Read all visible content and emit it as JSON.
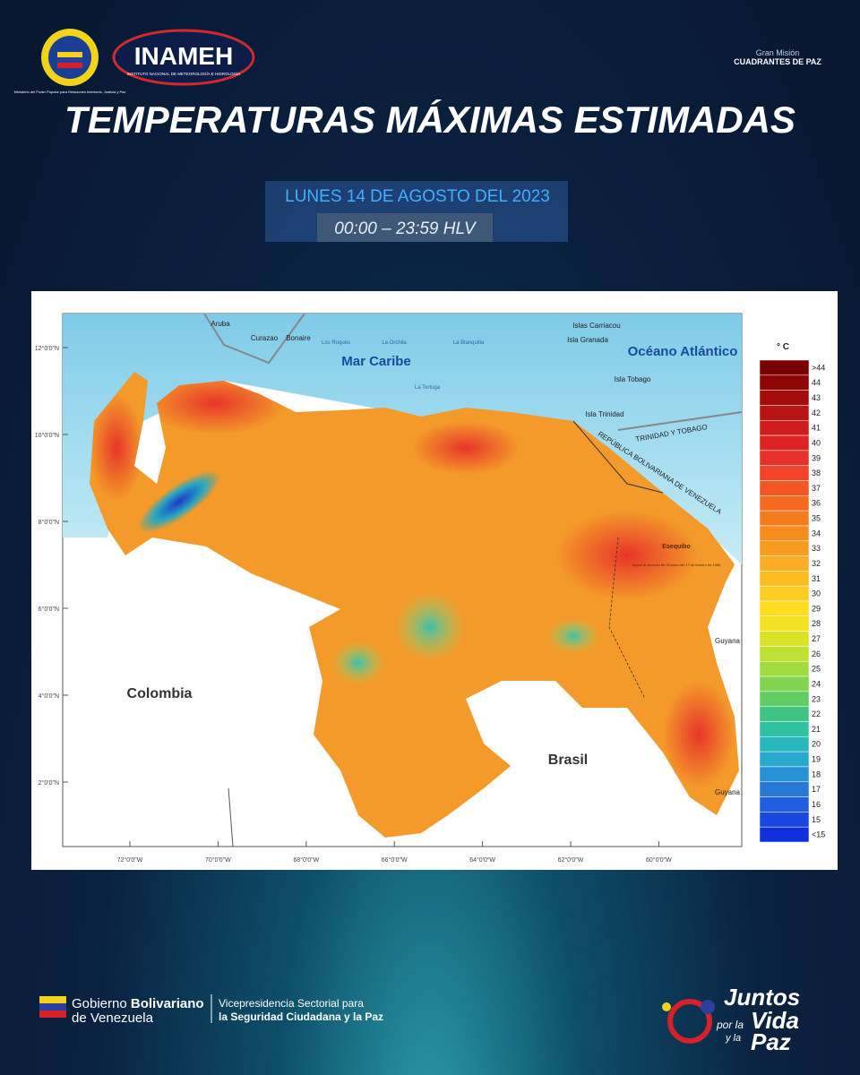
{
  "header": {
    "logo_ministry": "Ministerio del Poder Popular para Relaciones Interiores, Justicia y Paz",
    "logo_inameh": "INAMEH",
    "logo_inameh_subtitle": "INSTITUTO NACIONAL DE METEOROLOGÍA E HIDROLOGÍA",
    "mission_top": "Gran Misión",
    "mission_name": "CUADRANTES DE PAZ",
    "title": "TEMPERATURAS MÁXIMAS ESTIMADAS",
    "date": "LUNES 14 DE AGOSTO DEL 2023",
    "time": "00:00 – 23:59 HLV"
  },
  "map": {
    "labels": [
      "Aruba",
      "Curazao",
      "Bonaire",
      "Los Roques",
      "La Orchila",
      "La Blanquilla",
      "La Tortuga",
      "Islas Carriacou",
      "Isla Granada",
      "Isla Tobago",
      "Isla Trinidad",
      "Mar Caribe",
      "Océano Atlántico",
      "TRINIDAD Y TOBAGO",
      "REPÚBLICA BOLIVARIANA DE VENEZUELA",
      "Esequibo",
      "Sujeto al acuerdo de Ginebra del 17 de febrero de 1966",
      "Guyana",
      "Guyana",
      "Colombia",
      "Brasil"
    ],
    "lat_labels": [
      "12°0'0\"N",
      "10°0'0\"N",
      "8°0'0\"N",
      "6°0'0\"N",
      "4°0'0\"N",
      "2°0'0\"N"
    ],
    "lon_labels": [
      "72°0'0\"W",
      "70°0'0\"W",
      "68°0'0\"W",
      "66°0'0\"W",
      "64°0'0\"W",
      "62°0'0\"W",
      "60°0'0\"W"
    ],
    "legend": {
      "title": "° C",
      "items": [
        {
          "label": ">44",
          "color": "#7a0000"
        },
        {
          "label": "44",
          "color": "#8f0505"
        },
        {
          "label": "43",
          "color": "#a40c0c"
        },
        {
          "label": "42",
          "color": "#b81414"
        },
        {
          "label": "41",
          "color": "#cc1c1c"
        },
        {
          "label": "40",
          "color": "#dc2424"
        },
        {
          "label": "39",
          "color": "#e8302a"
        },
        {
          "label": "38",
          "color": "#f04428"
        },
        {
          "label": "37",
          "color": "#f35824"
        },
        {
          "label": "36",
          "color": "#f46a20"
        },
        {
          "label": "35",
          "color": "#f57c1e"
        },
        {
          "label": "34",
          "color": "#f68c1e"
        },
        {
          "label": "33",
          "color": "#f89c20"
        },
        {
          "label": "32",
          "color": "#faac22"
        },
        {
          "label": "31",
          "color": "#fcbc22"
        },
        {
          "label": "30",
          "color": "#fdcc22"
        },
        {
          "label": "29",
          "color": "#fedc20"
        },
        {
          "label": "28",
          "color": "#f2e222"
        },
        {
          "label": "27",
          "color": "#dae226"
        },
        {
          "label": "26",
          "color": "#bee032"
        },
        {
          "label": "25",
          "color": "#a0dc40"
        },
        {
          "label": "24",
          "color": "#80d450"
        },
        {
          "label": "23",
          "color": "#60cc64"
        },
        {
          "label": "22",
          "color": "#40c484"
        },
        {
          "label": "21",
          "color": "#30c0a2"
        },
        {
          "label": "20",
          "color": "#28b8bc"
        },
        {
          "label": "19",
          "color": "#28a8cc"
        },
        {
          "label": "18",
          "color": "#2890d4"
        },
        {
          "label": "17",
          "color": "#2878da"
        },
        {
          "label": "16",
          "color": "#2060e0"
        },
        {
          "label": "15",
          "color": "#1848e0"
        },
        {
          "label": "<15",
          "color": "#1030e0"
        }
      ]
    }
  },
  "footer": {
    "gov_1": "Gobierno",
    "gov_2": "Bolivariano",
    "gov_3": "de Venezuela",
    "vice_1": "Vicepresidencia Sectorial para",
    "vice_2": "la Seguridad Ciudadana y la Paz",
    "slogan_1": "Juntos",
    "slogan_2": "por la",
    "slogan_3": "Vida",
    "slogan_4": "y la",
    "slogan_5": "Paz"
  }
}
